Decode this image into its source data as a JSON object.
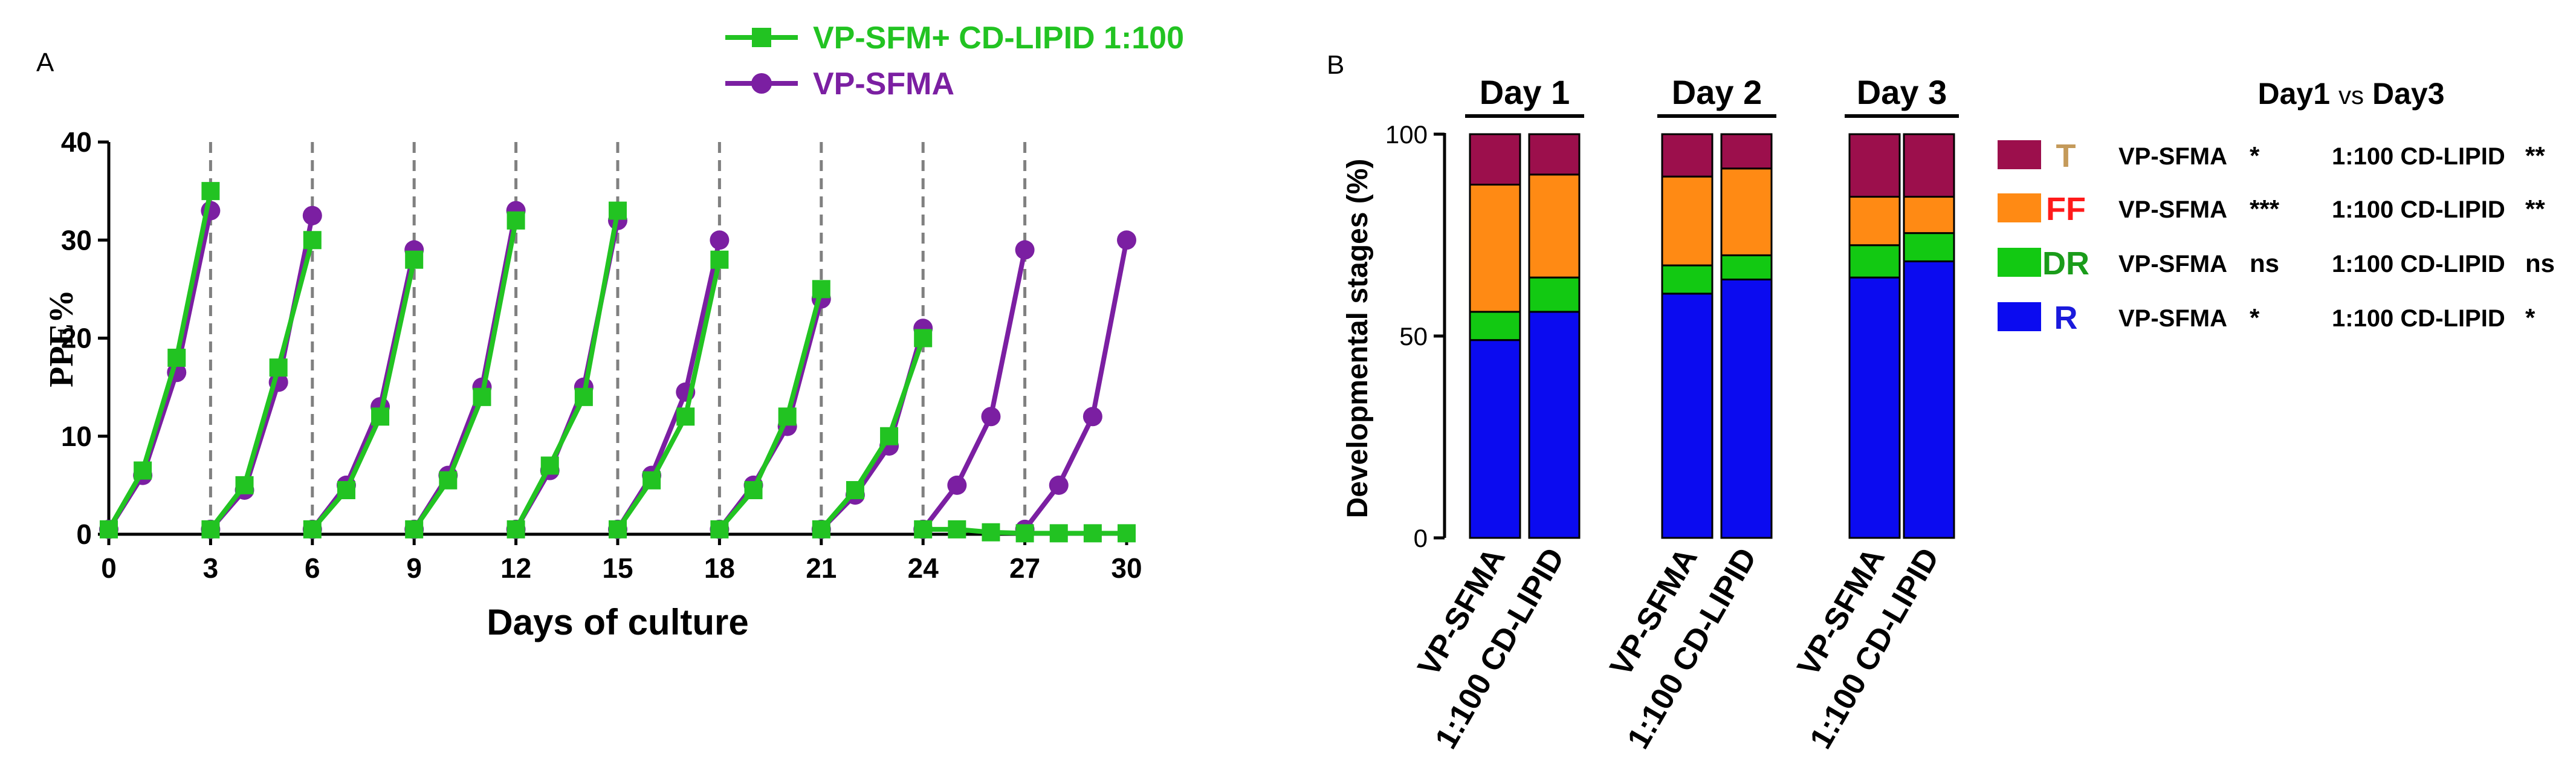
{
  "chart_data": [
    {
      "panel": "A",
      "type": "line",
      "xlabel": "Days of culture",
      "ylabel": "PPE%",
      "xlim": [
        0,
        30
      ],
      "ylim": [
        0,
        40
      ],
      "xticks": [
        "0",
        "3",
        "6",
        "9",
        "12",
        "15",
        "18",
        "21",
        "24",
        "27",
        "30"
      ],
      "yticks": [
        "0",
        "10",
        "20",
        "30",
        "40"
      ],
      "passage_days": [
        3,
        6,
        9,
        12,
        15,
        18,
        21,
        24,
        27
      ],
      "colors": {
        "green": "#22c322",
        "purple": "#7b1fa2",
        "axis": "#000000",
        "dash": "#808080"
      },
      "series": [
        {
          "name": "VP-SFM+ CD-LIPID 1:100",
          "marker": "square",
          "color": "#22c322",
          "segments": [
            [
              [
                0,
                0.5
              ],
              [
                1,
                6.5
              ],
              [
                2,
                18
              ],
              [
                3,
                35
              ]
            ],
            [
              [
                3,
                0.5
              ],
              [
                4,
                5
              ],
              [
                5,
                17
              ],
              [
                6,
                30
              ]
            ],
            [
              [
                6,
                0.5
              ],
              [
                7,
                4.5
              ],
              [
                8,
                12
              ],
              [
                9,
                28
              ]
            ],
            [
              [
                9,
                0.5
              ],
              [
                10,
                5.5
              ],
              [
                11,
                14
              ],
              [
                12,
                32
              ]
            ],
            [
              [
                12,
                0.5
              ],
              [
                13,
                7
              ],
              [
                14,
                14
              ],
              [
                15,
                33
              ]
            ],
            [
              [
                15,
                0.5
              ],
              [
                16,
                5.5
              ],
              [
                17,
                12
              ],
              [
                18,
                28
              ]
            ],
            [
              [
                18,
                0.5
              ],
              [
                19,
                4.5
              ],
              [
                20,
                12
              ],
              [
                21,
                25
              ]
            ],
            [
              [
                21,
                0.5
              ],
              [
                22,
                4.5
              ],
              [
                23,
                10
              ],
              [
                24,
                20
              ]
            ],
            [
              [
                24,
                0.5
              ],
              [
                25,
                0.5
              ],
              [
                26,
                0.2
              ],
              [
                27,
                0.1
              ],
              [
                28,
                0.1
              ],
              [
                29,
                0.1
              ],
              [
                30,
                0.1
              ]
            ]
          ]
        },
        {
          "name": "VP-SFMA",
          "marker": "circle",
          "color": "#7b1fa2",
          "segments": [
            [
              [
                0,
                0.5
              ],
              [
                1,
                6
              ],
              [
                2,
                16.5
              ],
              [
                3,
                33
              ]
            ],
            [
              [
                3,
                0.5
              ],
              [
                4,
                4.5
              ],
              [
                5,
                15.5
              ],
              [
                6,
                32.5
              ]
            ],
            [
              [
                6,
                0.5
              ],
              [
                7,
                5
              ],
              [
                8,
                13
              ],
              [
                9,
                29
              ]
            ],
            [
              [
                9,
                0.5
              ],
              [
                10,
                6
              ],
              [
                11,
                15
              ],
              [
                12,
                33
              ]
            ],
            [
              [
                12,
                0.5
              ],
              [
                13,
                6.5
              ],
              [
                14,
                15
              ],
              [
                15,
                32
              ]
            ],
            [
              [
                15,
                0.5
              ],
              [
                16,
                6
              ],
              [
                17,
                14.5
              ],
              [
                18,
                30
              ]
            ],
            [
              [
                18,
                0.5
              ],
              [
                19,
                5
              ],
              [
                20,
                11
              ],
              [
                21,
                24
              ]
            ],
            [
              [
                21,
                0.5
              ],
              [
                22,
                4
              ],
              [
                23,
                9
              ],
              [
                24,
                21
              ]
            ],
            [
              [
                24,
                0.5
              ],
              [
                25,
                5
              ],
              [
                26,
                12
              ],
              [
                27,
                29
              ]
            ],
            [
              [
                27,
                0.5
              ],
              [
                28,
                5
              ],
              [
                29,
                12
              ],
              [
                30,
                30
              ]
            ]
          ]
        }
      ]
    },
    {
      "panel": "B",
      "type": "bar",
      "stacked": true,
      "ylabel": "Developmental stages (%)",
      "ylim": [
        0,
        100
      ],
      "yticks": [
        "0",
        "50",
        "100"
      ],
      "groups": [
        "Day 1",
        "Day 2",
        "Day 3"
      ],
      "categories": [
        "VP-SFMA",
        "1:100 CD-LIPID",
        "VP-SFMA",
        "1:100 CD-LIPID",
        "VP-SFMA",
        "1:100 CD-LIPID"
      ],
      "series": [
        {
          "name": "R",
          "color": "#0b0bf0",
          "values": [
            49,
            56,
            60.5,
            64,
            64.5,
            68.5
          ]
        },
        {
          "name": "DR",
          "color": "#12c912",
          "values": [
            7,
            8.5,
            7,
            6,
            8,
            7
          ]
        },
        {
          "name": "FF",
          "color": "#ff8a14",
          "values": [
            31.5,
            25.5,
            22,
            21.5,
            12,
            9
          ]
        },
        {
          "name": "T",
          "color": "#9c0f4c",
          "values": [
            12.5,
            10,
            10.5,
            8.5,
            15.5,
            15.5
          ]
        }
      ],
      "comparison_title": {
        "a": "Day1",
        "vs": "vs",
        "b": "Day3"
      },
      "comparison_rows": [
        {
          "stage": "T",
          "stage_color": "#c49a5a",
          "box_color": "#9c0f4c",
          "a_label": "VP-SFMA",
          "a_sig": "*",
          "b_label": "1:100 CD-LIPID",
          "b_sig": "**"
        },
        {
          "stage": "FF",
          "stage_color": "#ff1a1a",
          "box_color": "#ff8a14",
          "a_label": "VP-SFMA",
          "a_sig": "***",
          "b_label": "1:100 CD-LIPID",
          "b_sig": "**"
        },
        {
          "stage": "DR",
          "stage_color": "#1a9c1a",
          "box_color": "#12c912",
          "a_label": "VP-SFMA",
          "a_sig": "ns",
          "b_label": "1:100 CD-LIPID",
          "b_sig": "ns"
        },
        {
          "stage": "R",
          "stage_color": "#1a1adc",
          "box_color": "#0b0bf0",
          "a_label": "VP-SFMA",
          "a_sig": "*",
          "b_label": "1:100 CD-LIPID",
          "b_sig": "*"
        }
      ]
    }
  ]
}
